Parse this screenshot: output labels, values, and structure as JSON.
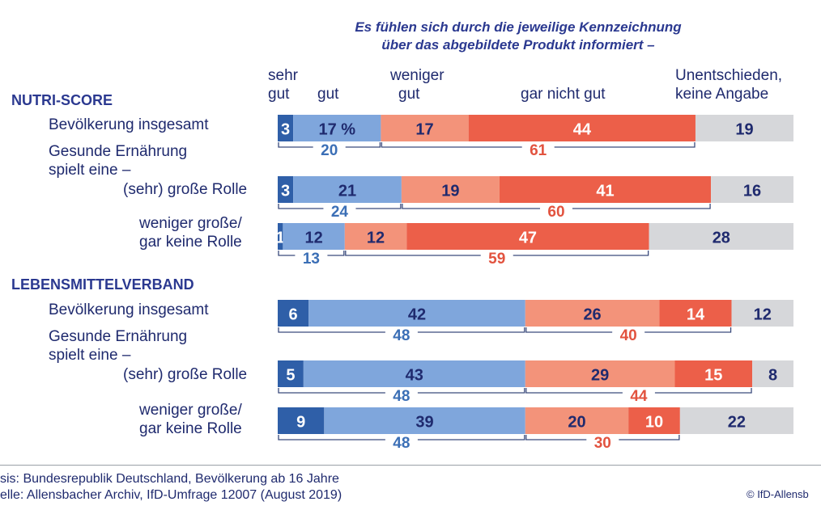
{
  "title": {
    "line1": "Es fühlen sich durch die jeweilige Kennzeichnung",
    "line2": "über das abgebildete Produkt informiert –"
  },
  "headers": {
    "sehr_gut_1": "sehr",
    "sehr_gut_2": "gut",
    "gut": "gut",
    "weniger_gut_1": "weniger",
    "weniger_gut_2": "gut",
    "gar_nicht_gut": "gar nicht gut",
    "unentschieden_1": "Unentschieden,",
    "unentschieden_2": "keine Angabe"
  },
  "sections": {
    "nutri": "NUTRI-SCORE",
    "lmv": "LEBENSMITTELVERBAND"
  },
  "labels": {
    "r1": "Bevölkerung insgesamt",
    "r2a": "Gesunde Ernährung",
    "r2b": "spielt eine –",
    "r2c": "(sehr) große Rolle",
    "r3a": "weniger große/",
    "r3b": "gar keine Rolle",
    "r4": "Bevölkerung insgesamt",
    "r5a": "Gesunde Ernährung",
    "r5b": "spielt eine –",
    "r5c": "(sehr) große Rolle",
    "r6a": "weniger große/",
    "r6b": "gar keine Rolle"
  },
  "source": {
    "basis": "sis: Bundesrepublik Deutschland, Bevölkerung ab 16 Jahre",
    "quelle": "elle: Allensbacher Archiv, IfD-Umfrage 12007 (August 2019)",
    "copyright": "© IfD-Allensb"
  },
  "chart_data": {
    "type": "bar",
    "stacked": true,
    "orientation": "horizontal",
    "title": "Es fühlen sich durch die jeweilige Kennzeichnung über das abgebildete Produkt informiert –",
    "categories": [
      "NUTRI-SCORE: Bevölkerung insgesamt",
      "NUTRI-SCORE: Gesunde Ernährung spielt eine – (sehr) große Rolle",
      "NUTRI-SCORE: weniger große/gar keine Rolle",
      "LEBENSMITTELVERBAND: Bevölkerung insgesamt",
      "LEBENSMITTELVERBAND: Gesunde Ernährung spielt eine – (sehr) große Rolle",
      "LEBENSMITTELVERBAND: weniger große/gar keine Rolle"
    ],
    "series": [
      {
        "name": "sehr gut",
        "color": "#2f5fa8",
        "values": [
          3,
          3,
          1,
          6,
          5,
          9
        ]
      },
      {
        "name": "gut",
        "color": "#7fa6dc",
        "values": [
          17,
          21,
          12,
          42,
          43,
          39
        ]
      },
      {
        "name": "weniger gut",
        "color": "#f3937a",
        "values": [
          17,
          19,
          12,
          26,
          29,
          20
        ]
      },
      {
        "name": "gar nicht gut",
        "color": "#ec5f49",
        "values": [
          44,
          41,
          47,
          14,
          15,
          10
        ]
      },
      {
        "name": "Unentschieden, keine Angabe",
        "color": "#d6d7da",
        "values": [
          19,
          16,
          28,
          12,
          8,
          22
        ]
      }
    ],
    "first_value_suffix": " %",
    "totals_positive": [
      20,
      24,
      13,
      48,
      48,
      48
    ],
    "totals_negative": [
      61,
      60,
      59,
      40,
      44,
      30
    ],
    "text_colors": {
      "dark": "#1f2a6e",
      "light": "#ffffff",
      "pos_total": "#3b6fb6",
      "neg_total": "#e2533f"
    }
  }
}
